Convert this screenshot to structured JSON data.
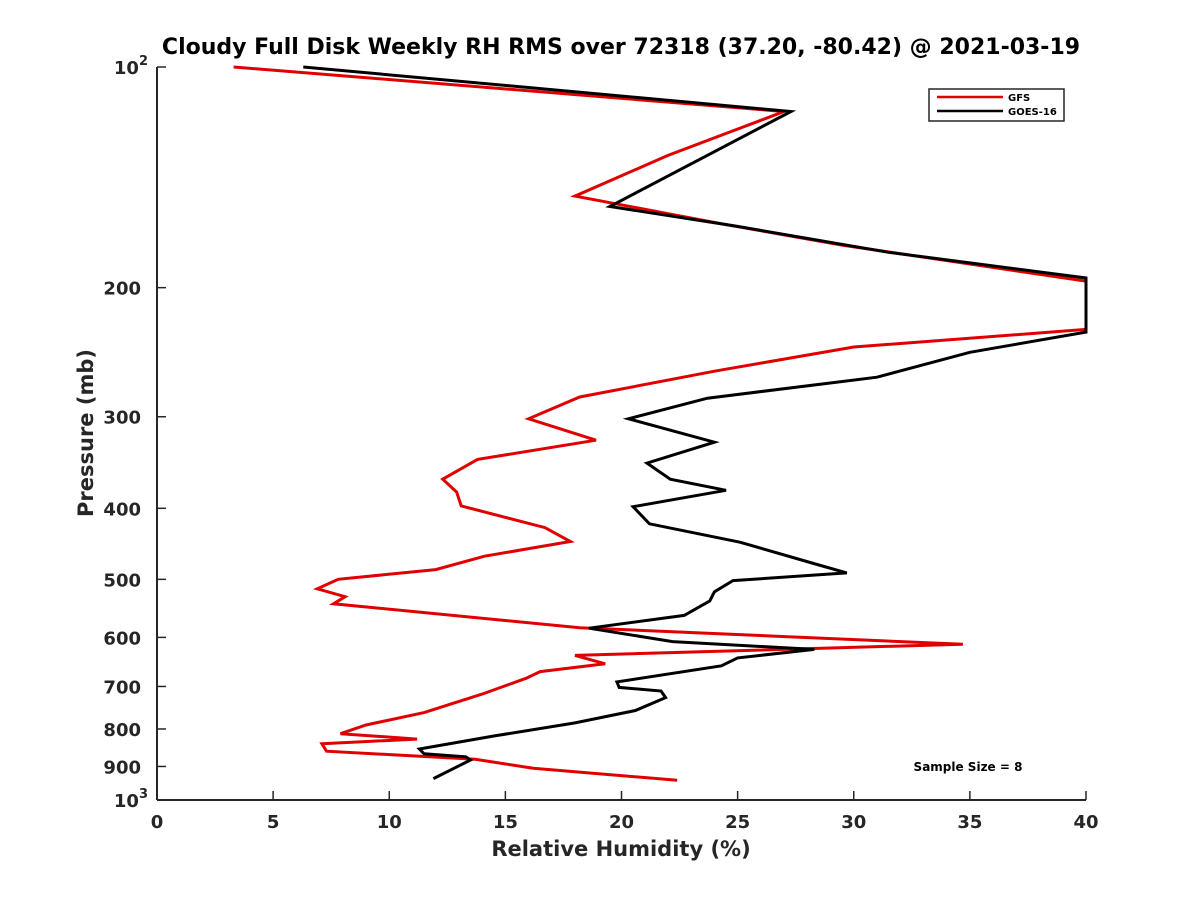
{
  "chart_data": {
    "type": "line",
    "title": "Cloudy Full Disk Weekly RH RMS over 72318 (37.20, -80.42) @ 2021-03-19",
    "xlabel": "Relative Humidity (%)",
    "ylabel": "Pressure (mb)",
    "xlim": [
      0,
      40
    ],
    "ylim": [
      100,
      1000
    ],
    "yscale": "log",
    "y_reversed": true,
    "x_ticks": [
      {
        "value": 0,
        "label": "0"
      },
      {
        "value": 5,
        "label": "5"
      },
      {
        "value": 10,
        "label": "10"
      },
      {
        "value": 15,
        "label": "15"
      },
      {
        "value": 20,
        "label": "20"
      },
      {
        "value": 25,
        "label": "25"
      },
      {
        "value": 30,
        "label": "30"
      },
      {
        "value": 35,
        "label": "35"
      },
      {
        "value": 40,
        "label": "40"
      }
    ],
    "y_ticks": [
      {
        "value": 100,
        "base": "10",
        "exp": "2"
      },
      {
        "value": 200,
        "label": "200"
      },
      {
        "value": 300,
        "label": "300"
      },
      {
        "value": 400,
        "label": "400"
      },
      {
        "value": 500,
        "label": "500"
      },
      {
        "value": 600,
        "label": "600"
      },
      {
        "value": 700,
        "label": "700"
      },
      {
        "value": 800,
        "label": "800"
      },
      {
        "value": 900,
        "label": "900"
      },
      {
        "value": 1000,
        "base": "10",
        "exp": "3"
      }
    ],
    "legend_position": "top-right",
    "annotation": "Sample Size = 8",
    "series": [
      {
        "name": "GFS",
        "color": "#e00000",
        "points": [
          [
            3.3,
            100
          ],
          [
            27.0,
            115
          ],
          [
            22.0,
            132
          ],
          [
            18.0,
            150
          ],
          [
            24.0,
            163
          ],
          [
            29.5,
            175
          ],
          [
            40.0,
            196
          ],
          [
            40.0,
            228
          ],
          [
            30.0,
            241
          ],
          [
            24.0,
            260
          ],
          [
            18.2,
            282
          ],
          [
            16.0,
            302
          ],
          [
            18.9,
            323
          ],
          [
            13.8,
            343
          ],
          [
            12.3,
            365
          ],
          [
            12.9,
            380
          ],
          [
            13.1,
            397
          ],
          [
            16.7,
            425
          ],
          [
            17.8,
            444
          ],
          [
            14.1,
            465
          ],
          [
            12.0,
            485
          ],
          [
            7.8,
            500
          ],
          [
            6.9,
            515
          ],
          [
            8.1,
            528
          ],
          [
            7.6,
            540
          ],
          [
            18.2,
            582
          ],
          [
            28.8,
            602
          ],
          [
            34.7,
            613
          ],
          [
            18.0,
            635
          ],
          [
            19.3,
            652
          ],
          [
            16.5,
            668
          ],
          [
            15.9,
            682
          ],
          [
            14.0,
            717
          ],
          [
            11.5,
            760
          ],
          [
            9.0,
            790
          ],
          [
            7.9,
            812
          ],
          [
            11.2,
            826
          ],
          [
            7.1,
            838
          ],
          [
            7.3,
            858
          ],
          [
            13.7,
            880
          ],
          [
            16.2,
            905
          ],
          [
            22.4,
            940
          ]
        ]
      },
      {
        "name": "GOES-16",
        "color": "#000000",
        "points": [
          [
            6.3,
            100
          ],
          [
            27.3,
            115
          ],
          [
            19.5,
            155
          ],
          [
            25.0,
            165
          ],
          [
            31.5,
            179
          ],
          [
            40.0,
            194
          ],
          [
            40.0,
            230
          ],
          [
            35.0,
            245
          ],
          [
            31.0,
            265
          ],
          [
            23.7,
            283
          ],
          [
            20.3,
            302
          ],
          [
            24.0,
            325
          ],
          [
            21.1,
            347
          ],
          [
            22.1,
            365
          ],
          [
            24.5,
            378
          ],
          [
            20.5,
            398
          ],
          [
            21.2,
            420
          ],
          [
            25.1,
            445
          ],
          [
            28.2,
            475
          ],
          [
            29.7,
            490
          ],
          [
            24.8,
            502
          ],
          [
            24.0,
            520
          ],
          [
            23.8,
            535
          ],
          [
            22.7,
            560
          ],
          [
            18.6,
            583
          ],
          [
            22.2,
            608
          ],
          [
            28.3,
            623
          ],
          [
            25.0,
            640
          ],
          [
            24.3,
            656
          ],
          [
            19.8,
            690
          ],
          [
            19.9,
            702
          ],
          [
            21.7,
            710
          ],
          [
            21.9,
            725
          ],
          [
            20.6,
            755
          ],
          [
            18.0,
            785
          ],
          [
            14.5,
            818
          ],
          [
            11.3,
            852
          ],
          [
            11.5,
            865
          ],
          [
            13.3,
            873
          ],
          [
            13.5,
            882
          ],
          [
            13.1,
            895
          ],
          [
            11.9,
            935
          ]
        ]
      }
    ]
  }
}
